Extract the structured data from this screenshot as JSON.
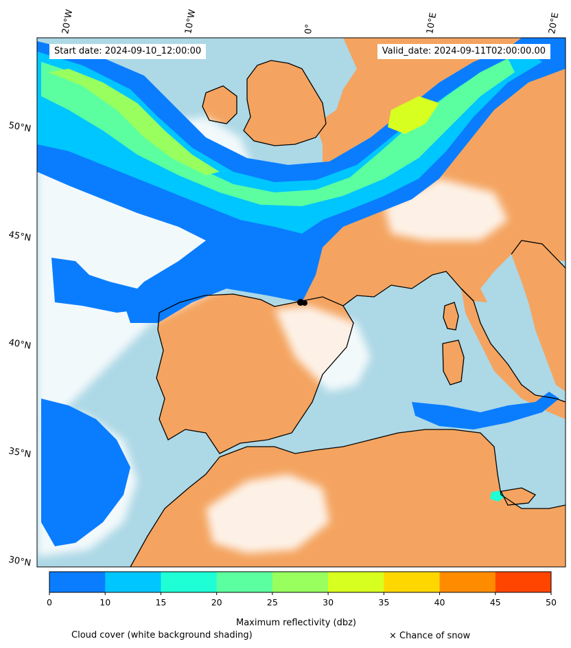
{
  "header": {
    "start_date": "Start date: 2024-09-10_12:00:00",
    "valid_date": "Valid_date: 2024-09-11T02:00:00.00"
  },
  "map": {
    "lon_labels": [
      "20°W",
      "10°W",
      "0°",
      "10°E",
      "20°E"
    ],
    "lat_labels": [
      "50°N",
      "45°N",
      "40°N",
      "35°N",
      "30°N"
    ],
    "colors": {
      "land": "#f4a460",
      "sea": "#add8e6",
      "coast": "#000000",
      "cloud": "#ffffff"
    }
  },
  "colorbar": {
    "label": "Maximum reflectivity (dbz)",
    "ticks": [
      "0",
      "10",
      "15",
      "20",
      "25",
      "30",
      "35",
      "40",
      "45",
      "50"
    ],
    "colors": [
      "#0a7dff",
      "#00c6ff",
      "#1effd6",
      "#5cffa0",
      "#98ff5e",
      "#d7ff1f",
      "#ffd700",
      "#ff8c00",
      "#ff4500"
    ]
  },
  "footer": {
    "cloud_note": "Cloud cover (white background shading)",
    "snow_note": "× Chance of snow"
  }
}
